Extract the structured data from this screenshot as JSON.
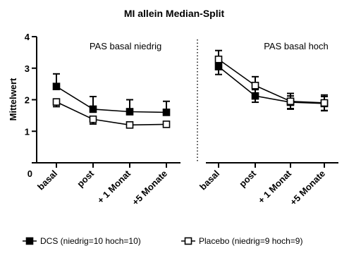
{
  "chart_data": {
    "type": "line",
    "title": "MI allein Median-Split",
    "ylabel": "Mittelwert",
    "ylim": [
      0,
      4
    ],
    "yticks": [
      0,
      1,
      2,
      3,
      4
    ],
    "x_origin_label": "0",
    "grid": false,
    "legend_position": "bottom",
    "panels": [
      {
        "label": "PAS basal niedrig",
        "categories": [
          "basal",
          "post",
          "+ 1 Monat",
          "+5 Monate"
        ]
      },
      {
        "label": "PAS basal hoch",
        "categories": [
          "basal",
          "post",
          "+ 1 Monat",
          "+5 Monate"
        ]
      }
    ],
    "series": [
      {
        "name": "DCS (niedrig=10 hoch=10)",
        "marker": "filled-square",
        "color": "#000000",
        "panels": [
          {
            "values": [
              2.42,
              1.7,
              1.62,
              1.6
            ],
            "errors": [
              0.4,
              0.4,
              0.38,
              0.35
            ]
          },
          {
            "values": [
              3.05,
              2.12,
              1.92,
              1.88
            ],
            "errors": [
              0.25,
              0.2,
              0.2,
              0.22
            ]
          }
        ]
      },
      {
        "name": "Placebo (niedrig=9 hoch=9)",
        "marker": "open-square",
        "color": "#000000",
        "panels": [
          {
            "values": [
              1.93,
              1.38,
              1.2,
              1.22
            ],
            "errors": [
              0.15,
              0.15,
              0.06,
              0.06
            ]
          },
          {
            "values": [
              3.28,
              2.45,
              1.95,
              1.9
            ],
            "errors": [
              0.28,
              0.28,
              0.25,
              0.25
            ]
          }
        ]
      }
    ]
  }
}
